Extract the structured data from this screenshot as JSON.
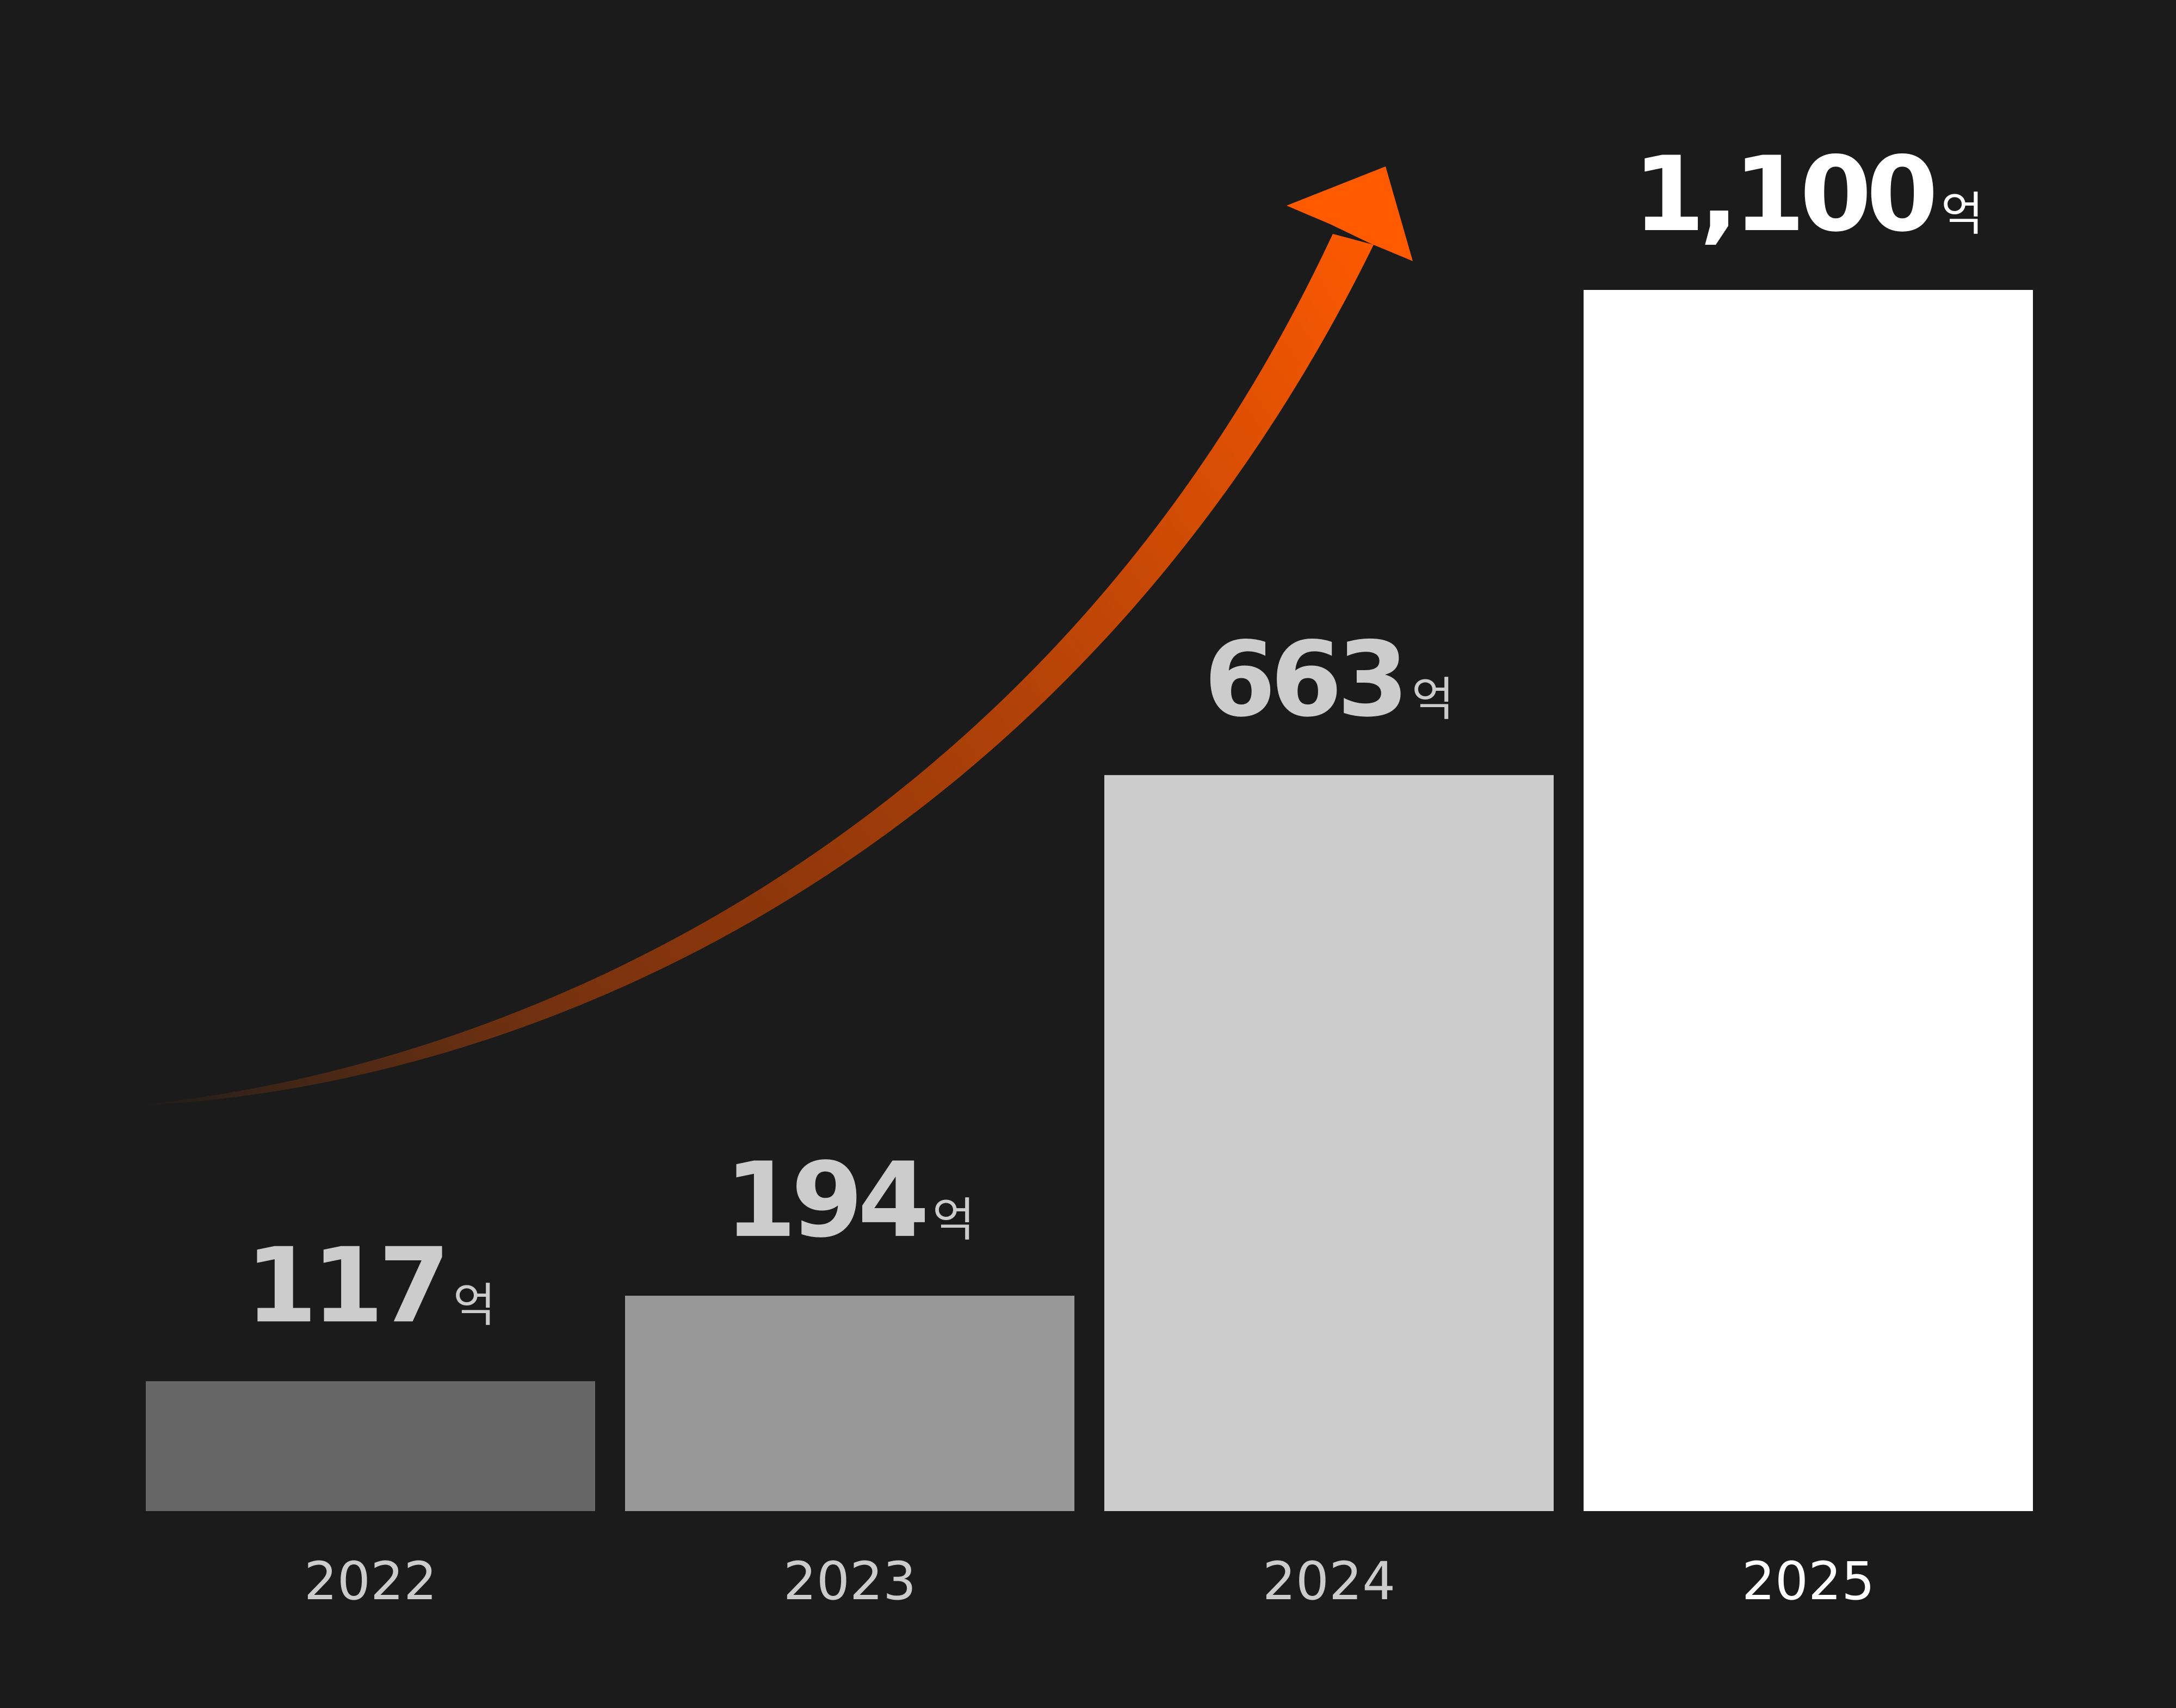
{
  "chart_data": {
    "type": "bar",
    "categories": [
      "2022",
      "2023",
      "2024",
      "2025"
    ],
    "values": [
      117,
      194,
      663,
      1100
    ],
    "value_labels": [
      "117",
      "194",
      "663",
      "1,100"
    ],
    "unit": "억",
    "colors": [
      "#666666",
      "#999999",
      "#cccccc",
      "#ffffff"
    ],
    "label_colors": [
      "#cccccc",
      "#cccccc",
      "#cccccc",
      "#ffffff"
    ]
  }
}
